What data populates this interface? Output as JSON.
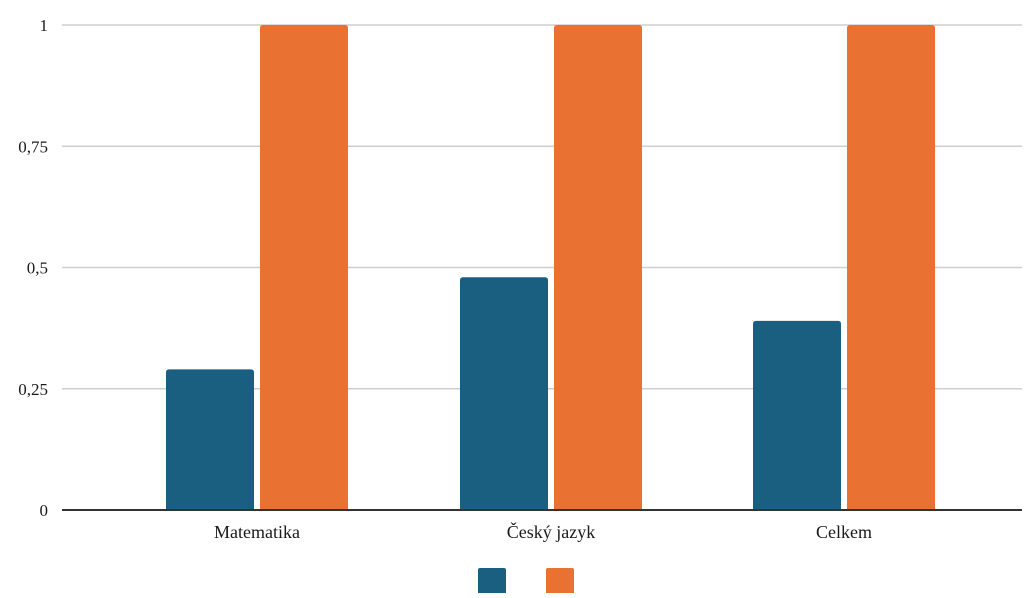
{
  "chart_data": {
    "type": "bar",
    "categories": [
      "Matematika",
      "Český jazyk",
      "Celkem"
    ],
    "series": [
      {
        "values": [
          0.29,
          0.48,
          0.39
        ],
        "color": "#1a5e80"
      },
      {
        "values": [
          1,
          1,
          1
        ],
        "color": "#e97132"
      }
    ],
    "ylim": [
      0,
      1
    ],
    "y_ticks": [
      {
        "value": 0,
        "label": "0"
      },
      {
        "value": 0.25,
        "label": "0,25"
      },
      {
        "value": 0.5,
        "label": "0,5"
      },
      {
        "value": 0.75,
        "label": "0,75"
      },
      {
        "value": 1,
        "label": "1"
      }
    ],
    "grid": true,
    "legend_position": "bottom",
    "gridline_color": "#cfcfcf",
    "axis_color": "#333333"
  }
}
